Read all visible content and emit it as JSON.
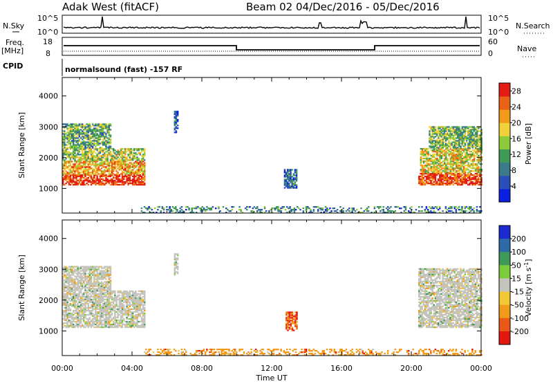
{
  "header": {
    "radar_title": "Adak West (fitACF)",
    "beam_title": "Beam 02  04/Dec/2016 - 05/Dec/2016"
  },
  "top_panels": {
    "nsky": {
      "label": "N.Sky",
      "left_ticks": [
        "10^5",
        "10^0"
      ],
      "right_label": "N.Search",
      "right_ticks": [
        "10^5",
        "10^0"
      ]
    },
    "freq": {
      "label": "Freq.",
      "unit": "[MHz]",
      "left_ticks": [
        "18",
        "8"
      ],
      "right_label": "Nave",
      "right_ticks": [
        "60",
        "0"
      ]
    },
    "cpid": {
      "label": "CPID",
      "text": "normalsound (fast) -157 RF"
    }
  },
  "chart_data": [
    {
      "type": "heatmap",
      "name": "power-panel",
      "ylabel": "Slant Range [km]",
      "yticks": [
        1000,
        2000,
        3000,
        4000
      ],
      "ylim": [
        200,
        4600
      ],
      "xlim_hours": [
        0,
        24
      ],
      "colorbar": {
        "label": "Power [dB]",
        "ticks": [
          4,
          8,
          12,
          16,
          20,
          24,
          28
        ],
        "colors": [
          "#0a1fe0",
          "#2b4fb6",
          "#3a7a8a",
          "#3f9a55",
          "#8ccc3a",
          "#f2d23c",
          "#f29a1a",
          "#ea6216",
          "#e21c12"
        ],
        "range": [
          0,
          30
        ]
      },
      "regions": [
        {
          "t0": 0.0,
          "t1": 4.7,
          "r0": 1100,
          "r1": 1450,
          "level": 0.93
        },
        {
          "t0": 0.0,
          "t1": 4.7,
          "r0": 1450,
          "r1": 1900,
          "level": 0.7
        },
        {
          "t0": 0.0,
          "t1": 4.7,
          "r0": 1900,
          "r1": 2300,
          "level": 0.5
        },
        {
          "t0": 0.0,
          "t1": 2.8,
          "r0": 2300,
          "r1": 3100,
          "level": 0.4
        },
        {
          "t0": 6.4,
          "t1": 6.6,
          "r0": 2800,
          "r1": 3500,
          "level": 0.2
        },
        {
          "t0": 12.7,
          "t1": 13.4,
          "r0": 1000,
          "r1": 1600,
          "level": 0.25
        },
        {
          "t0": 20.4,
          "t1": 24.0,
          "r0": 1100,
          "r1": 1500,
          "level": 0.9
        },
        {
          "t0": 20.5,
          "t1": 24.0,
          "r0": 1500,
          "r1": 2300,
          "level": 0.6
        },
        {
          "t0": 21.0,
          "t1": 24.0,
          "r0": 2300,
          "r1": 3000,
          "level": 0.45
        },
        {
          "t0": 4.5,
          "t1": 24.0,
          "r0": 200,
          "r1": 420,
          "level": 0.3
        }
      ]
    },
    {
      "type": "heatmap",
      "name": "velocity-panel",
      "ylabel": "Slant Range [km]",
      "yticks": [
        1000,
        2000,
        3000,
        4000
      ],
      "ylim": [
        200,
        4600
      ],
      "xlim_hours": [
        0,
        24
      ],
      "xticks": [
        "00:00",
        "04:00",
        "08:00",
        "12:00",
        "16:00",
        "20:00",
        "00:00"
      ],
      "xlabel": "Time UT",
      "colorbar": {
        "label": "Velocity [m s^-1]",
        "ticks": [
          "200",
          "100",
          "50",
          "15",
          "-15",
          "-50",
          "-100",
          "-200"
        ],
        "colors": [
          "#1a2bd0",
          "#2c6aa8",
          "#3f9a5a",
          "#7ccc3a",
          "#c4c4bc",
          "#f2c834",
          "#f29a1a",
          "#ea5a16",
          "#e01810"
        ]
      },
      "regions": [
        {
          "t0": 0.0,
          "t1": 4.7,
          "r0": 1100,
          "r1": 2300,
          "level": 0.5
        },
        {
          "t0": 0.0,
          "t1": 2.8,
          "r0": 2300,
          "r1": 3100,
          "level": 0.5
        },
        {
          "t0": 6.4,
          "t1": 6.6,
          "r0": 2800,
          "r1": 3500,
          "level": 0.3
        },
        {
          "t0": 12.8,
          "t1": 13.4,
          "r0": 1000,
          "r1": 1600,
          "level": 0.75
        },
        {
          "t0": 20.4,
          "t1": 24.0,
          "r0": 1100,
          "r1": 3000,
          "level": 0.5
        },
        {
          "t0": 4.5,
          "t1": 24.0,
          "r0": 200,
          "r1": 420,
          "level": 0.65
        }
      ]
    }
  ]
}
